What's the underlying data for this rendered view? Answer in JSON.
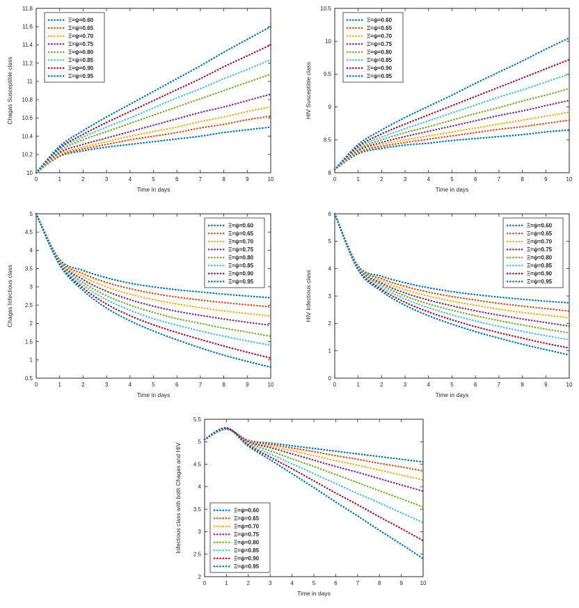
{
  "page": {
    "background": "#ffffff",
    "text_color": "#262626",
    "axis_color": "#262626"
  },
  "palette": [
    "#0072BD",
    "#D95319",
    "#EDB120",
    "#7E2F8E",
    "#77AC30",
    "#4DBEEE",
    "#A2142F",
    "#0072BD"
  ],
  "legend_labels": [
    "Ξ=ψ=0.60",
    "Ξ=ψ=0.65",
    "Ξ=ψ=0.70",
    "Ξ=ψ=0.75",
    "Ξ=ψ=0.80",
    "Ξ=ψ=0.85",
    "Ξ=ψ=0.90",
    "Ξ=ψ=0.95"
  ],
  "chart_data": [
    {
      "id": "chagas-susceptible",
      "type": "line",
      "line_style": "dotted",
      "title": "",
      "xlabel": "Time in days",
      "ylabel": "Chagas Susceptible class",
      "xlim": [
        0,
        10
      ],
      "ylim": [
        10,
        11.8
      ],
      "xtick_step": 1,
      "ytick_step": 0.2,
      "grid": false,
      "legend_position": "nw",
      "x": [
        0,
        1,
        2,
        3,
        4,
        5,
        6,
        7,
        8,
        9,
        10
      ],
      "series": [
        {
          "name": "Ξ=ψ=0.60",
          "values": [
            10.0,
            10.18,
            10.24,
            10.28,
            10.31,
            10.34,
            10.37,
            10.4,
            10.44,
            10.47,
            10.5
          ]
        },
        {
          "name": "Ξ=ψ=0.65",
          "values": [
            10.0,
            10.19,
            10.26,
            10.31,
            10.36,
            10.4,
            10.44,
            10.49,
            10.53,
            10.58,
            10.62
          ]
        },
        {
          "name": "Ξ=ψ=0.70",
          "values": [
            10.0,
            10.2,
            10.28,
            10.34,
            10.4,
            10.45,
            10.5,
            10.56,
            10.61,
            10.67,
            10.72
          ]
        },
        {
          "name": "Ξ=ψ=0.75",
          "values": [
            10.0,
            10.22,
            10.31,
            10.38,
            10.45,
            10.52,
            10.59,
            10.66,
            10.72,
            10.79,
            10.86
          ]
        },
        {
          "name": "Ξ=ψ=0.80",
          "values": [
            10.0,
            10.24,
            10.36,
            10.45,
            10.54,
            10.63,
            10.72,
            10.81,
            10.9,
            10.99,
            11.08
          ]
        },
        {
          "name": "Ξ=ψ=0.85",
          "values": [
            10.0,
            10.26,
            10.39,
            10.5,
            10.6,
            10.71,
            10.82,
            10.92,
            11.03,
            11.13,
            11.24
          ]
        },
        {
          "name": "Ξ=ψ=0.90",
          "values": [
            10.0,
            10.27,
            10.42,
            10.55,
            10.67,
            10.79,
            10.91,
            11.03,
            11.16,
            11.28,
            11.4
          ]
        },
        {
          "name": "Ξ=ψ=0.95",
          "values": [
            10.0,
            10.29,
            10.46,
            10.61,
            10.75,
            10.89,
            11.03,
            11.17,
            11.32,
            11.46,
            11.6
          ]
        }
      ]
    },
    {
      "id": "hiv-susceptible",
      "type": "line",
      "line_style": "dotted",
      "title": "",
      "xlabel": "Time in days",
      "ylabel": "HIV Susceptible class",
      "xlim": [
        0,
        10
      ],
      "ylim": [
        8,
        10.5
      ],
      "xtick_step": 1,
      "ytick_step": 0.5,
      "grid": false,
      "legend_position": "nw",
      "x": [
        0,
        1,
        2,
        3,
        4,
        5,
        6,
        7,
        8,
        9,
        10
      ],
      "series": [
        {
          "name": "Ξ=ψ=0.60",
          "values": [
            8.05,
            8.29,
            8.37,
            8.42,
            8.45,
            8.49,
            8.52,
            8.55,
            8.58,
            8.62,
            8.65
          ]
        },
        {
          "name": "Ξ=ψ=0.65",
          "values": [
            8.05,
            8.31,
            8.4,
            8.46,
            8.51,
            8.56,
            8.61,
            8.66,
            8.7,
            8.75,
            8.8
          ]
        },
        {
          "name": "Ξ=ψ=0.70",
          "values": [
            8.05,
            8.32,
            8.43,
            8.5,
            8.56,
            8.62,
            8.68,
            8.74,
            8.8,
            8.86,
            8.92
          ]
        },
        {
          "name": "Ξ=ψ=0.75",
          "values": [
            8.05,
            8.34,
            8.46,
            8.55,
            8.63,
            8.71,
            8.79,
            8.87,
            8.94,
            9.02,
            9.1
          ]
        },
        {
          "name": "Ξ=ψ=0.80",
          "values": [
            8.05,
            8.36,
            8.5,
            8.61,
            8.7,
            8.8,
            8.9,
            8.99,
            9.09,
            9.18,
            9.28
          ]
        },
        {
          "name": "Ξ=ψ=0.85",
          "values": [
            8.05,
            8.38,
            8.54,
            8.67,
            8.79,
            8.91,
            9.03,
            9.15,
            9.26,
            9.38,
            9.5
          ]
        },
        {
          "name": "Ξ=ψ=0.90",
          "values": [
            8.05,
            8.4,
            8.59,
            8.74,
            8.88,
            9.02,
            9.16,
            9.3,
            9.44,
            9.58,
            9.72
          ]
        },
        {
          "name": "Ξ=ψ=0.95",
          "values": [
            8.05,
            8.43,
            8.65,
            8.84,
            9.01,
            9.18,
            9.36,
            9.53,
            9.7,
            9.88,
            10.05
          ]
        }
      ]
    },
    {
      "id": "chagas-infectious",
      "type": "line",
      "line_style": "dotted",
      "title": "",
      "xlabel": "Time in days",
      "ylabel": "Chagas Infectious class",
      "xlim": [
        0,
        10
      ],
      "ylim": [
        0.5,
        5
      ],
      "xtick_step": 1,
      "ytick_step": 0.5,
      "grid": false,
      "legend_position": "ne",
      "x": [
        0,
        1,
        2,
        3,
        4,
        5,
        6,
        7,
        8,
        9,
        10
      ],
      "series": [
        {
          "name": "Ξ=ψ=0.60",
          "values": [
            5.0,
            3.75,
            3.45,
            3.25,
            3.1,
            3.0,
            2.92,
            2.86,
            2.8,
            2.75,
            2.7
          ]
        },
        {
          "name": "Ξ=ψ=0.65",
          "values": [
            5.0,
            3.72,
            3.36,
            3.12,
            2.95,
            2.82,
            2.72,
            2.64,
            2.57,
            2.51,
            2.45
          ]
        },
        {
          "name": "Ξ=ψ=0.70",
          "values": [
            5.0,
            3.7,
            3.28,
            3.0,
            2.8,
            2.65,
            2.53,
            2.43,
            2.34,
            2.27,
            2.2
          ]
        },
        {
          "name": "Ξ=ψ=0.75",
          "values": [
            5.0,
            3.68,
            3.2,
            2.88,
            2.65,
            2.47,
            2.33,
            2.22,
            2.12,
            2.03,
            1.95
          ]
        },
        {
          "name": "Ξ=ψ=0.80",
          "values": [
            5.0,
            3.66,
            3.12,
            2.76,
            2.5,
            2.3,
            2.13,
            2.0,
            1.87,
            1.76,
            1.65
          ]
        },
        {
          "name": "Ξ=ψ=0.85",
          "values": [
            5.0,
            3.64,
            3.05,
            2.65,
            2.36,
            2.13,
            1.95,
            1.79,
            1.65,
            1.52,
            1.4
          ]
        },
        {
          "name": "Ξ=ψ=0.90",
          "values": [
            5.0,
            3.62,
            2.97,
            2.53,
            2.21,
            1.96,
            1.75,
            1.56,
            1.38,
            1.21,
            1.05
          ]
        },
        {
          "name": "Ξ=ψ=0.95",
          "values": [
            5.0,
            3.6,
            2.9,
            2.42,
            2.07,
            1.79,
            1.55,
            1.33,
            1.13,
            0.96,
            0.8
          ]
        }
      ]
    },
    {
      "id": "hiv-infectious",
      "type": "line",
      "line_style": "dotted",
      "title": "",
      "xlabel": "Time in days",
      "ylabel": "HIV Infectious class",
      "xlim": [
        0,
        10
      ],
      "ylim": [
        0,
        6
      ],
      "xtick_step": 1,
      "ytick_step": 1,
      "grid": false,
      "legend_position": "ne",
      "x": [
        0,
        1,
        2,
        3,
        4,
        5,
        6,
        7,
        8,
        9,
        10
      ],
      "series": [
        {
          "name": "Ξ=ψ=0.60",
          "values": [
            6.0,
            4.1,
            3.72,
            3.48,
            3.3,
            3.16,
            3.05,
            2.96,
            2.88,
            2.81,
            2.75
          ]
        },
        {
          "name": "Ξ=ψ=0.65",
          "values": [
            6.0,
            4.07,
            3.63,
            3.35,
            3.14,
            2.98,
            2.85,
            2.73,
            2.63,
            2.54,
            2.45
          ]
        },
        {
          "name": "Ξ=ψ=0.70",
          "values": [
            6.0,
            4.05,
            3.55,
            3.23,
            3.0,
            2.81,
            2.66,
            2.52,
            2.4,
            2.3,
            2.2
          ]
        },
        {
          "name": "Ξ=ψ=0.75",
          "values": [
            6.0,
            4.03,
            3.47,
            3.11,
            2.85,
            2.64,
            2.46,
            2.3,
            2.16,
            2.03,
            1.9
          ]
        },
        {
          "name": "Ξ=ψ=0.80",
          "values": [
            6.0,
            4.01,
            3.4,
            3.0,
            2.71,
            2.48,
            2.28,
            2.1,
            1.94,
            1.79,
            1.65
          ]
        },
        {
          "name": "Ξ=ψ=0.85",
          "values": [
            6.0,
            3.99,
            3.32,
            2.89,
            2.57,
            2.31,
            2.09,
            1.89,
            1.71,
            1.55,
            1.4
          ]
        },
        {
          "name": "Ξ=ψ=0.90",
          "values": [
            6.0,
            3.97,
            3.24,
            2.77,
            2.42,
            2.13,
            1.88,
            1.66,
            1.46,
            1.27,
            1.1
          ]
        },
        {
          "name": "Ξ=ψ=0.95",
          "values": [
            6.0,
            3.95,
            3.17,
            2.66,
            2.28,
            1.97,
            1.7,
            1.46,
            1.24,
            1.04,
            0.85
          ]
        }
      ]
    },
    {
      "id": "coinfected",
      "type": "line",
      "line_style": "dotted",
      "title": "",
      "xlabel": "Time in days",
      "ylabel": "Infectious class with both Chagas and HIV",
      "xlim": [
        0,
        10
      ],
      "ylim": [
        2,
        5.5
      ],
      "xtick_step": 1,
      "ytick_step": 0.5,
      "grid": false,
      "legend_position": "sw",
      "x": [
        0,
        1,
        2,
        3,
        4,
        5,
        6,
        7,
        8,
        9,
        10
      ],
      "series": [
        {
          "name": "Ξ=ψ=0.60",
          "values": [
            5.05,
            5.28,
            5.03,
            4.97,
            4.91,
            4.85,
            4.79,
            4.73,
            4.67,
            4.61,
            4.55
          ]
        },
        {
          "name": "Ξ=ψ=0.65",
          "values": [
            5.05,
            5.28,
            5.02,
            4.94,
            4.86,
            4.78,
            4.69,
            4.61,
            4.52,
            4.44,
            4.35
          ]
        },
        {
          "name": "Ξ=ψ=0.70",
          "values": [
            5.05,
            5.29,
            5.01,
            4.9,
            4.8,
            4.69,
            4.58,
            4.48,
            4.37,
            4.26,
            4.15
          ]
        },
        {
          "name": "Ξ=ψ=0.75",
          "values": [
            5.05,
            5.29,
            5.0,
            4.87,
            4.73,
            4.59,
            4.45,
            4.32,
            4.18,
            4.04,
            3.9
          ]
        },
        {
          "name": "Ξ=ψ=0.80",
          "values": [
            5.05,
            5.3,
            4.98,
            4.8,
            4.62,
            4.45,
            4.27,
            4.09,
            3.91,
            3.73,
            3.55
          ]
        },
        {
          "name": "Ξ=ψ=0.85",
          "values": [
            5.05,
            5.3,
            4.95,
            4.73,
            4.51,
            4.29,
            4.07,
            3.85,
            3.64,
            3.42,
            3.2
          ]
        },
        {
          "name": "Ξ=ψ=0.90",
          "values": [
            5.05,
            5.31,
            4.93,
            4.66,
            4.4,
            4.13,
            3.86,
            3.6,
            3.33,
            3.07,
            2.8
          ]
        },
        {
          "name": "Ξ=ψ=0.95",
          "values": [
            5.05,
            5.3,
            4.9,
            4.6,
            4.29,
            3.98,
            3.66,
            3.35,
            3.03,
            2.72,
            2.4
          ]
        }
      ]
    }
  ]
}
